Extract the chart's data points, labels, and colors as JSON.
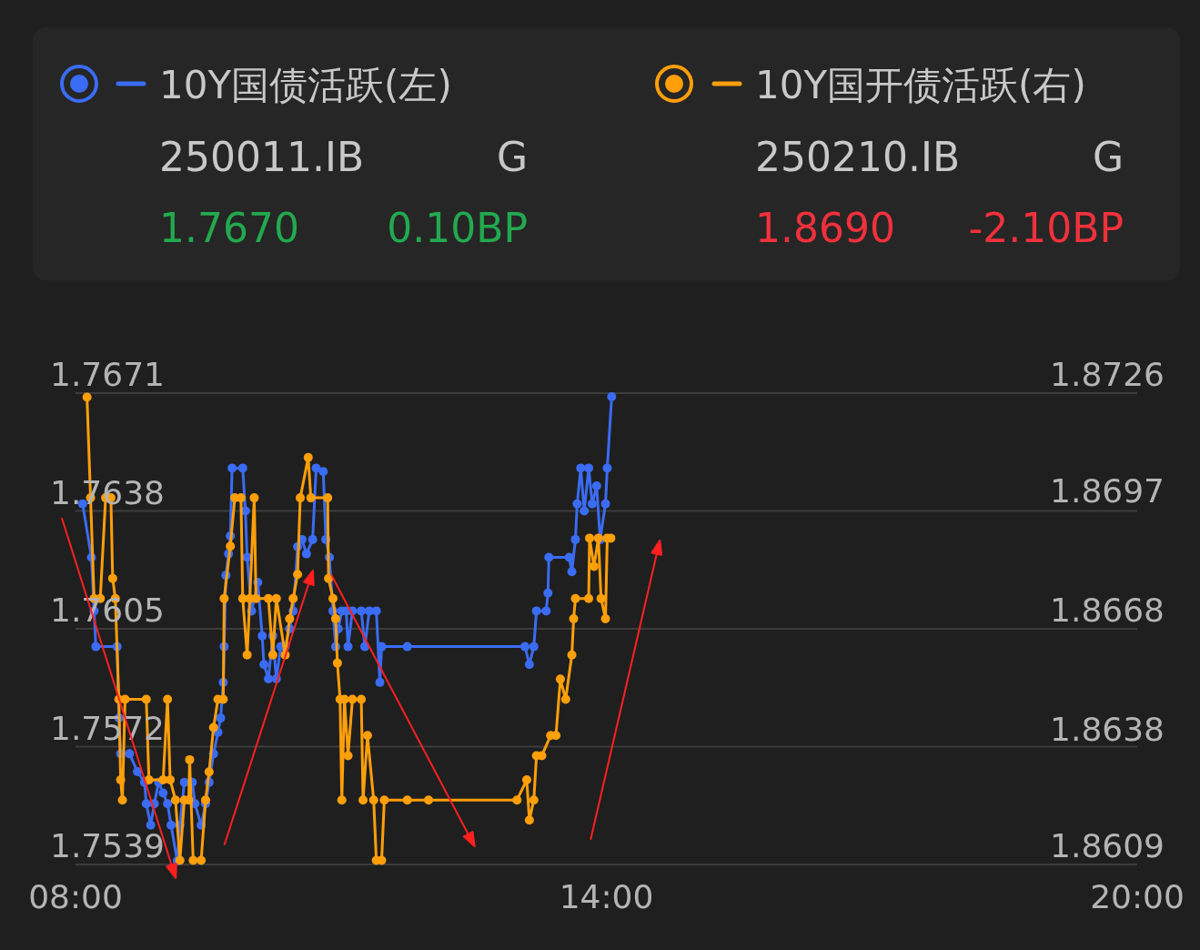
{
  "chart_data": {
    "type": "line",
    "xlim": [
      8,
      20
    ],
    "xticks": [
      {
        "value": 8,
        "label": "08:00"
      },
      {
        "value": 14,
        "label": "14:00"
      },
      {
        "value": 20,
        "label": "20:00"
      }
    ],
    "ylim": [
      1.7539,
      1.7671
    ],
    "yticks": [
      1.7539,
      1.7572,
      1.7605,
      1.7638,
      1.7671
    ],
    "y2lim": [
      1.8609,
      1.8726
    ],
    "y2ticks": [
      1.8609,
      1.8638,
      {
        "value": 1.86675,
        "label": "1.8668"
      },
      1.8697,
      1.8726
    ],
    "grid": "y",
    "legend": "top",
    "marker": "circle",
    "line_style": "solid",
    "annotations": [
      "250011.IB",
      "G",
      "1.7670",
      "0.10BP",
      "250210.IB",
      "G",
      "1.8690",
      "-2.10BP"
    ],
    "series": [
      {
        "name": "10Y国债活跃(左)",
        "color": "#3a6cf4",
        "axis": "y",
        "x": [
          8.08,
          8.18,
          8.21,
          8.23,
          8.47,
          8.49,
          8.51,
          8.61,
          8.7,
          8.78,
          8.8,
          8.85,
          8.89,
          8.94,
          8.99,
          9.04,
          9.08,
          9.15,
          9.18,
          9.23,
          9.32,
          9.35,
          9.42,
          9.47,
          9.51,
          9.56,
          9.61,
          9.64,
          9.67,
          9.68,
          9.7,
          9.73,
          9.75,
          9.77,
          9.89,
          9.92,
          9.94,
          9.99,
          10.06,
          10.11,
          10.13,
          10.18,
          10.23,
          10.27,
          10.32,
          10.37,
          10.42,
          10.46,
          10.51,
          10.56,
          10.61,
          10.68,
          10.72,
          10.8,
          10.83,
          10.87,
          10.91,
          10.94,
          10.97,
          11.01,
          11.06,
          11.08,
          11.13,
          11.23,
          11.27,
          11.32,
          11.4,
          11.44,
          11.46,
          11.75,
          13.08,
          13.13,
          13.18,
          13.21,
          13.32,
          13.34,
          13.35,
          13.58,
          13.61,
          13.65,
          13.67,
          13.71,
          13.75,
          13.8,
          13.84,
          13.89,
          13.93,
          13.99,
          14.01,
          14.06
        ],
        "values": [
          1.764,
          1.7625,
          1.761,
          1.76,
          1.76,
          1.758,
          1.757,
          1.757,
          1.7565,
          1.7562,
          1.7556,
          1.755,
          1.7556,
          1.7562,
          1.7559,
          1.7556,
          1.755,
          1.754,
          1.755,
          1.7562,
          1.7562,
          1.7556,
          1.755,
          1.7556,
          1.7562,
          1.757,
          1.7576,
          1.758,
          1.759,
          1.76,
          1.762,
          1.7626,
          1.7631,
          1.765,
          1.765,
          1.7638,
          1.7625,
          1.761,
          1.7618,
          1.7603,
          1.7595,
          1.7591,
          1.7603,
          1.7591,
          1.76,
          1.76,
          1.7605,
          1.761,
          1.7628,
          1.763,
          1.7626,
          1.763,
          1.765,
          1.7649,
          1.763,
          1.7625,
          1.761,
          1.76,
          1.7605,
          1.761,
          1.761,
          1.76,
          1.761,
          1.761,
          1.76,
          1.761,
          1.761,
          1.759,
          1.76,
          1.76,
          1.76,
          1.7595,
          1.76,
          1.761,
          1.761,
          1.7615,
          1.7625,
          1.7625,
          1.7621,
          1.763,
          1.764,
          1.765,
          1.7638,
          1.765,
          1.764,
          1.7645,
          1.763,
          1.764,
          1.765,
          1.767
        ]
      },
      {
        "name": "10Y国开债活跃(右)",
        "color": "#ff9f0a",
        "axis": "y2",
        "x": [
          8.13,
          8.17,
          8.21,
          8.28,
          8.34,
          8.4,
          8.42,
          8.45,
          8.49,
          8.51,
          8.53,
          8.56,
          8.8,
          8.83,
          8.99,
          9.04,
          9.07,
          9.13,
          9.18,
          9.23,
          9.28,
          9.29,
          9.33,
          9.42,
          9.47,
          9.51,
          9.56,
          9.61,
          9.67,
          9.68,
          9.75,
          9.8,
          9.87,
          9.89,
          9.94,
          9.97,
          10.02,
          10.04,
          10.18,
          10.23,
          10.27,
          10.37,
          10.42,
          10.46,
          10.51,
          10.54,
          10.63,
          10.66,
          10.85,
          10.86,
          10.91,
          10.94,
          10.96,
          10.99,
          11.01,
          11.04,
          11.08,
          11.13,
          11.23,
          11.25,
          11.3,
          11.37,
          11.4,
          11.46,
          11.49,
          11.75,
          11.99,
          12.99,
          13.1,
          13.13,
          13.18,
          13.21,
          13.27,
          13.37,
          13.43,
          13.48,
          13.54,
          13.61,
          13.63,
          13.65,
          13.8,
          13.81,
          13.86,
          13.91,
          13.94,
          13.99,
          14.01,
          14.05
        ],
        "values": [
          1.8725,
          1.87,
          1.8675,
          1.8675,
          1.87,
          1.87,
          1.868,
          1.8675,
          1.865,
          1.863,
          1.8625,
          1.865,
          1.865,
          1.863,
          1.863,
          1.865,
          1.863,
          1.8625,
          1.861,
          1.8625,
          1.8625,
          1.8635,
          1.861,
          1.861,
          1.8625,
          1.8632,
          1.8643,
          1.865,
          1.865,
          1.8675,
          1.8688,
          1.87,
          1.87,
          1.8675,
          1.8661,
          1.8675,
          1.87,
          1.8675,
          1.8675,
          1.8661,
          1.8675,
          1.8661,
          1.867,
          1.8675,
          1.8681,
          1.87,
          1.871,
          1.87,
          1.87,
          1.868,
          1.8675,
          1.867,
          1.8659,
          1.865,
          1.8625,
          1.865,
          1.8636,
          1.865,
          1.865,
          1.8625,
          1.8641,
          1.8625,
          1.861,
          1.861,
          1.8625,
          1.8625,
          1.8625,
          1.8625,
          1.863,
          1.862,
          1.8625,
          1.8636,
          1.8636,
          1.8641,
          1.8641,
          1.8655,
          1.865,
          1.8661,
          1.867,
          1.8675,
          1.8675,
          1.869,
          1.8683,
          1.869,
          1.8675,
          1.867,
          1.869,
          1.869
        ]
      }
    ]
  }
}
